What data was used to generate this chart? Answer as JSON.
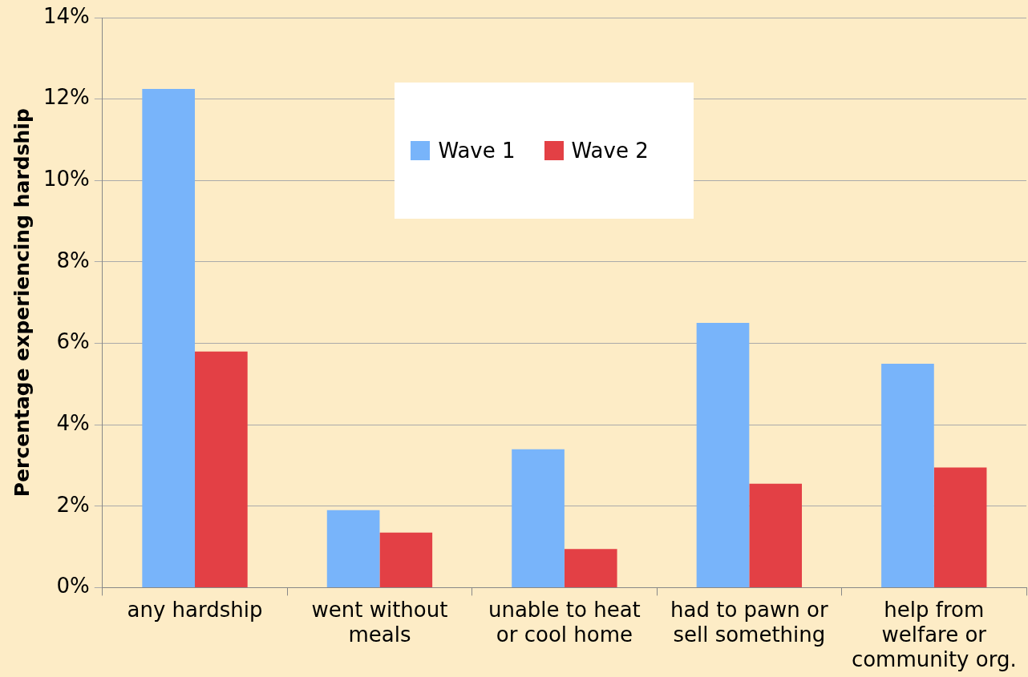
{
  "chart_data": {
    "type": "bar",
    "ylabel": "Percentage experiencing hardship",
    "categories": [
      "any hardship",
      "went without meals",
      "unable to heat or cool home",
      "had to pawn or sell something",
      "help from welfare or community org."
    ],
    "series": [
      {
        "name": "Wave 1",
        "color": "#78b4fa",
        "values": [
          12.25,
          1.9,
          3.4,
          6.5,
          5.5
        ]
      },
      {
        "name": "Wave 2",
        "color": "#e34045",
        "values": [
          5.8,
          1.35,
          0.95,
          2.55,
          2.95
        ]
      }
    ],
    "ylim": [
      0,
      14
    ],
    "yticks": [
      {
        "value": 0,
        "label": "0%"
      },
      {
        "value": 2,
        "label": "2%"
      },
      {
        "value": 4,
        "label": "4%"
      },
      {
        "value": 6,
        "label": "6%"
      },
      {
        "value": 8,
        "label": "8%"
      },
      {
        "value": 10,
        "label": "10%"
      },
      {
        "value": 12,
        "label": "12%"
      },
      {
        "value": 14,
        "label": "14%"
      }
    ],
    "grid": "y",
    "legend": "top"
  }
}
